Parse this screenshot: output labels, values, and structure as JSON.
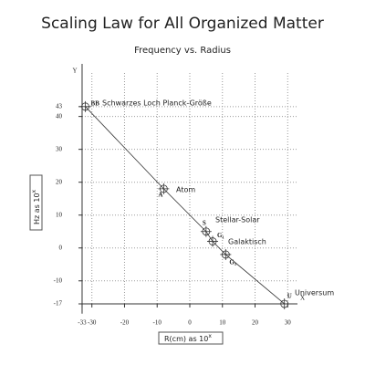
{
  "chart_data": {
    "type": "line",
    "title": "Scaling Law for All Organized Matter",
    "subtitle": "Frequency vs. Radius",
    "x_label": "R(cm) as 10",
    "x_label_exp": "x",
    "y_label": "Hz as 10",
    "y_label_exp": "x",
    "x_axis_name": "X",
    "y_axis_name": "Y",
    "x": [
      -32,
      -8,
      5,
      7,
      11,
      29
    ],
    "series": [
      {
        "name": "Scaling law",
        "color": "#333333",
        "values": [
          43,
          18,
          5,
          2,
          -2,
          -17
        ]
      }
    ],
    "point_labels": [
      "BB",
      "A",
      "S",
      "G₁",
      "G₃",
      "U"
    ],
    "annotations": [
      "Schwarzes Loch Planck-Größe",
      "Atom",
      "Stellar-Solar",
      "Galaktisch",
      "Universum"
    ],
    "xlim": [
      -34,
      33
    ],
    "ylim": [
      -20,
      56
    ],
    "xticks": [
      -33,
      -30,
      -20,
      -10,
      0,
      10,
      20,
      30
    ],
    "yticks": [
      -17,
      -10,
      0,
      10,
      20,
      30,
      40,
      43
    ],
    "grid": true
  }
}
